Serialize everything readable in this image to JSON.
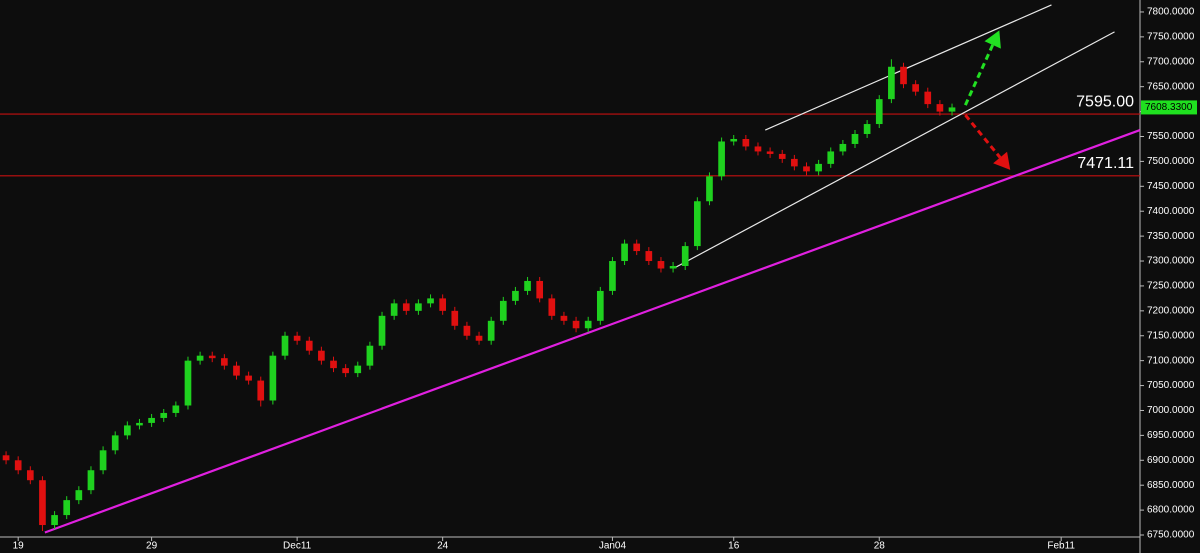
{
  "chart_data": {
    "type": "candlestick",
    "up_color": "#1fd11f",
    "down_color": "#e01010",
    "x": [
      0,
      1,
      2,
      3,
      4,
      5,
      6,
      7,
      8,
      9,
      10,
      11,
      12,
      13,
      14,
      15,
      16,
      17,
      18,
      19,
      20,
      21,
      22,
      23,
      24,
      25,
      26,
      27,
      28,
      29,
      30,
      31,
      32,
      33,
      34,
      35,
      36,
      37,
      38,
      39,
      40,
      41,
      42,
      43,
      44,
      45,
      46,
      47,
      48,
      49,
      50,
      51,
      52,
      53,
      54,
      55,
      56,
      57,
      58,
      59,
      60,
      61,
      62,
      63,
      64,
      65,
      66,
      67,
      68,
      69,
      70,
      71,
      72,
      73,
      74,
      75,
      76,
      77,
      78
    ],
    "open": [
      6910,
      6900,
      6880,
      6860,
      6770,
      6790,
      6820,
      6840,
      6880,
      6920,
      6950,
      6970,
      6975,
      6985,
      6995,
      7010,
      7100,
      7110,
      7105,
      7090,
      7070,
      7060,
      7020,
      7110,
      7150,
      7140,
      7120,
      7100,
      7085,
      7075,
      7090,
      7130,
      7190,
      7215,
      7200,
      7215,
      7225,
      7200,
      7170,
      7150,
      7140,
      7180,
      7220,
      7240,
      7260,
      7225,
      7190,
      7180,
      7165,
      7180,
      7240,
      7300,
      7335,
      7320,
      7300,
      7285,
      7290,
      7330,
      7420,
      7470,
      7540,
      7545,
      7530,
      7520,
      7515,
      7505,
      7490,
      7480,
      7495,
      7520,
      7535,
      7555,
      7575,
      7625,
      7690,
      7655,
      7640,
      7615,
      7600
    ],
    "close": [
      6900,
      6880,
      6860,
      6770,
      6790,
      6820,
      6840,
      6880,
      6920,
      6950,
      6970,
      6975,
      6985,
      6995,
      7010,
      7100,
      7110,
      7105,
      7090,
      7070,
      7060,
      7020,
      7110,
      7150,
      7140,
      7120,
      7100,
      7085,
      7075,
      7090,
      7130,
      7190,
      7215,
      7200,
      7215,
      7225,
      7200,
      7170,
      7150,
      7140,
      7180,
      7220,
      7240,
      7260,
      7225,
      7190,
      7180,
      7165,
      7180,
      7240,
      7300,
      7335,
      7320,
      7300,
      7285,
      7290,
      7330,
      7420,
      7470,
      7540,
      7545,
      7530,
      7520,
      7515,
      7505,
      7490,
      7480,
      7495,
      7520,
      7535,
      7555,
      7575,
      7625,
      7690,
      7655,
      7640,
      7615,
      7600,
      7608.33
    ],
    "high": [
      6918,
      6908,
      6888,
      6868,
      6798,
      6828,
      6848,
      6888,
      6928,
      6958,
      6978,
      6983,
      6993,
      7003,
      7018,
      7108,
      7118,
      7118,
      7113,
      7098,
      7078,
      7068,
      7118,
      7158,
      7158,
      7148,
      7128,
      7108,
      7093,
      7098,
      7138,
      7198,
      7223,
      7223,
      7223,
      7233,
      7233,
      7208,
      7178,
      7158,
      7188,
      7228,
      7248,
      7268,
      7268,
      7233,
      7198,
      7188,
      7188,
      7248,
      7308,
      7343,
      7343,
      7328,
      7308,
      7298,
      7338,
      7428,
      7478,
      7548,
      7553,
      7553,
      7538,
      7528,
      7523,
      7513,
      7498,
      7503,
      7528,
      7543,
      7563,
      7583,
      7633,
      7705,
      7698,
      7663,
      7648,
      7623,
      7616
    ],
    "low": [
      6892,
      6872,
      6852,
      6758,
      6762,
      6782,
      6812,
      6832,
      6872,
      6912,
      6942,
      6962,
      6967,
      6977,
      6987,
      7002,
      7092,
      7097,
      7082,
      7062,
      7052,
      7008,
      7012,
      7102,
      7132,
      7112,
      7092,
      7077,
      7067,
      7067,
      7082,
      7122,
      7182,
      7192,
      7192,
      7207,
      7192,
      7162,
      7142,
      7132,
      7132,
      7172,
      7212,
      7232,
      7217,
      7182,
      7172,
      7157,
      7157,
      7172,
      7232,
      7292,
      7312,
      7292,
      7277,
      7277,
      7282,
      7322,
      7412,
      7462,
      7532,
      7522,
      7512,
      7507,
      7497,
      7482,
      7472,
      7472,
      7487,
      7512,
      7527,
      7547,
      7567,
      7617,
      7647,
      7632,
      7607,
      7592,
      7592
    ],
    "xlim": [
      -0.5,
      93.5
    ],
    "xticks": [
      {
        "value": 1,
        "label": "19"
      },
      {
        "value": 12,
        "label": "29"
      },
      {
        "value": 24,
        "label": "Dec11"
      },
      {
        "value": 36,
        "label": "24"
      },
      {
        "value": 50,
        "label": "Jan04"
      },
      {
        "value": 60,
        "label": "16"
      },
      {
        "value": 72,
        "label": "28"
      },
      {
        "value": 87,
        "label": "Feb11"
      }
    ],
    "ylim": [
      6746,
      7824
    ],
    "yticks": [
      {
        "value": 6750,
        "label": "6750.0000"
      },
      {
        "value": 6800,
        "label": "6800.0000"
      },
      {
        "value": 6850,
        "label": "6850.0000"
      },
      {
        "value": 6900,
        "label": "6900.0000"
      },
      {
        "value": 6950,
        "label": "6950.0000"
      },
      {
        "value": 7000,
        "label": "7000.0000"
      },
      {
        "value": 7050,
        "label": "7050.0000"
      },
      {
        "value": 7100,
        "label": "7100.0000"
      },
      {
        "value": 7150,
        "label": "7150.0000"
      },
      {
        "value": 7200,
        "label": "7200.0000"
      },
      {
        "value": 7250,
        "label": "7250.0000"
      },
      {
        "value": 7300,
        "label": "7300.0000"
      },
      {
        "value": 7350,
        "label": "7350.0000"
      },
      {
        "value": 7400,
        "label": "7400.0000"
      },
      {
        "value": 7450,
        "label": "7450.0000"
      },
      {
        "value": 7500,
        "label": "7500.0000"
      },
      {
        "value": 7550,
        "label": "7550.0000"
      },
      {
        "value": 7600,
        "label": "7600.0000"
      },
      {
        "value": 7650,
        "label": "7650.0000"
      },
      {
        "value": 7700,
        "label": "7700.0000"
      },
      {
        "value": 7750,
        "label": "7750.0000"
      },
      {
        "value": 7800,
        "label": "7800.0000"
      }
    ],
    "levels": [
      {
        "value": 7595,
        "label": "7595.00",
        "color": "#c41010"
      },
      {
        "value": 7471.11,
        "label": "7471.11",
        "color": "#c41010"
      }
    ],
    "last_price": {
      "value": 7608.33,
      "label": "7608.3300",
      "color": "#1fe01f"
    },
    "trendlines": [
      {
        "x": [
          3.2,
          93.5
        ],
        "y": [
          6755,
          7563
        ],
        "color": "#e020e0"
      },
      {
        "x": [
          55.1,
          91.4
        ],
        "y": [
          7286,
          7760
        ],
        "color": "#e8e8e8"
      },
      {
        "x": [
          62.6,
          86.2
        ],
        "y": [
          7563,
          7814
        ],
        "color": "#e8e8e8"
      }
    ],
    "arrows": [
      {
        "x": [
          79.1,
          81.9
        ],
        "y": [
          7613,
          7763
        ],
        "color": "#22e022"
      },
      {
        "x": [
          79.1,
          82.8
        ],
        "y": [
          7593,
          7483
        ],
        "color": "#e01010"
      }
    ]
  }
}
